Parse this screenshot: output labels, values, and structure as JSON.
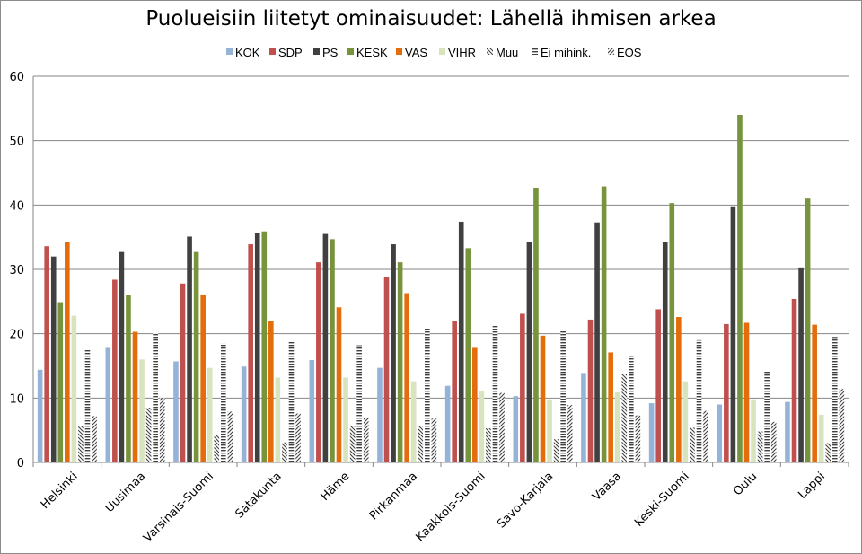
{
  "chart_data": {
    "type": "bar",
    "title": "Puolueisiin liitetyt ominaisuudet: Lähellä ihmisen arkea",
    "xlabel": "",
    "ylabel": "",
    "ylim": [
      0,
      60
    ],
    "yticks": [
      0,
      10,
      20,
      30,
      40,
      50,
      60
    ],
    "grid": true,
    "legend_position": "top",
    "categories": [
      "Helsinki",
      "Uusimaa",
      "Varsinais-Suomi",
      "Satakunta",
      "Häme",
      "Pirkanmaa",
      "Kaakkois-Suomi",
      "Savo-Karjala",
      "Vaasa",
      "Keski-Suomi",
      "Oulu",
      "Lappi"
    ],
    "series": [
      {
        "name": "KOK",
        "color": "#95b3d7",
        "pattern": "solid",
        "values": [
          14.4,
          17.8,
          15.7,
          14.9,
          15.9,
          14.7,
          11.9,
          10.3,
          13.9,
          9.2,
          9.0,
          9.4
        ]
      },
      {
        "name": "SDP",
        "color": "#c0504d",
        "pattern": "solid",
        "values": [
          33.6,
          28.4,
          27.8,
          33.9,
          31.1,
          28.8,
          22.0,
          23.1,
          22.2,
          23.8,
          21.5,
          25.4
        ]
      },
      {
        "name": "PS",
        "color": "#404040",
        "pattern": "solid",
        "values": [
          32.0,
          32.7,
          35.1,
          35.6,
          35.5,
          33.9,
          37.4,
          34.3,
          37.3,
          34.3,
          39.8,
          30.3
        ]
      },
      {
        "name": "KESK",
        "color": "#77933c",
        "pattern": "solid",
        "values": [
          24.9,
          26.0,
          32.7,
          35.9,
          34.7,
          31.1,
          33.3,
          42.7,
          42.9,
          40.3,
          54.0,
          41.0
        ]
      },
      {
        "name": "VAS",
        "color": "#e46c0a",
        "pattern": "solid",
        "values": [
          34.3,
          20.3,
          26.1,
          22.0,
          24.1,
          26.3,
          17.8,
          19.7,
          17.1,
          22.6,
          21.7,
          21.4
        ]
      },
      {
        "name": "VIHR",
        "color": "#d7e4bd",
        "pattern": "solid",
        "values": [
          22.8,
          16.0,
          14.7,
          13.2,
          13.2,
          12.6,
          11.1,
          9.8,
          10.9,
          12.6,
          9.8,
          7.4
        ]
      },
      {
        "name": "Muu",
        "color": "#404040",
        "pattern": "diagonal-down",
        "values": [
          5.6,
          8.5,
          4.2,
          3.1,
          5.6,
          5.7,
          5.3,
          3.6,
          13.8,
          5.4,
          4.8,
          3.0
        ]
      },
      {
        "name": "Ei mihink.",
        "color": "#404040",
        "pattern": "horizontal",
        "values": [
          17.6,
          20.1,
          18.5,
          18.8,
          18.2,
          21.0,
          21.4,
          20.4,
          16.6,
          19.0,
          14.3,
          19.5
        ]
      },
      {
        "name": "EOS",
        "color": "#404040",
        "pattern": "diagonal-up",
        "values": [
          7.2,
          10.0,
          7.9,
          7.6,
          7.0,
          6.8,
          10.8,
          8.9,
          7.3,
          8.0,
          6.3,
          11.4
        ]
      }
    ]
  }
}
